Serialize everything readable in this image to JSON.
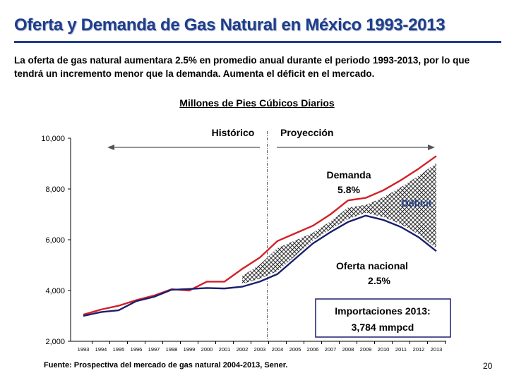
{
  "slide": {
    "title": "Oferta y Demanda de Gas Natural en México 1993-2013",
    "subtitle": "La oferta de gas natural aumentara 2.5% en promedio anual durante el periodo 1993-2013, por lo que tendrá un incremento menor que la demanda. Aumenta el déficit en el mercado.",
    "units_label": "Millones de Pies Cúbicos Diarios",
    "source": "Fuente: Prospectiva del mercado de gas natural 2004-2013, Sener.",
    "page_number": "20"
  },
  "colors": {
    "title": "#1f3e8a",
    "demanda": "#d42027",
    "oferta": "#1a1f6e",
    "divider": "#555555"
  },
  "chart_data": {
    "type": "line",
    "x": [
      "1993",
      "1994",
      "1995",
      "1996",
      "1997",
      "1998",
      "1999",
      "2000",
      "2001",
      "2002",
      "2003",
      "2004",
      "2005",
      "2006",
      "2007",
      "2008",
      "2009",
      "2010",
      "2011",
      "2012",
      "2013"
    ],
    "series": [
      {
        "name": "Demanda",
        "values": [
          3050,
          3250,
          3400,
          3620,
          3800,
          4050,
          4000,
          4350,
          4350,
          4850,
          5300,
          5950,
          6250,
          6550,
          7000,
          7550,
          7650,
          7950,
          8350,
          8800,
          9300
        ]
      },
      {
        "name": "Oferta nacional",
        "values": [
          3000,
          3150,
          3220,
          3580,
          3750,
          4030,
          4060,
          4100,
          4080,
          4150,
          4350,
          4650,
          5250,
          5850,
          6300,
          6700,
          6950,
          6780,
          6500,
          6100,
          5550
        ]
      }
    ],
    "ylim": [
      2000,
      10000
    ],
    "yticks": [
      "2,000",
      "4,000",
      "6,000",
      "8,000",
      "10,000"
    ],
    "ytick_values": [
      2000,
      4000,
      6000,
      8000,
      10000
    ],
    "period_labels": {
      "historic": "Histórico",
      "projection": "Proyección"
    },
    "annotations": {
      "demanda_name": "Demanda",
      "demanda_rate": "5.8%",
      "deficit": "Déficit",
      "oferta_name": "Oferta nacional",
      "oferta_rate": "2.5%",
      "imports_line1": "Importaciones 2013:",
      "imports_line2": "3,784  mmpcd"
    }
  }
}
